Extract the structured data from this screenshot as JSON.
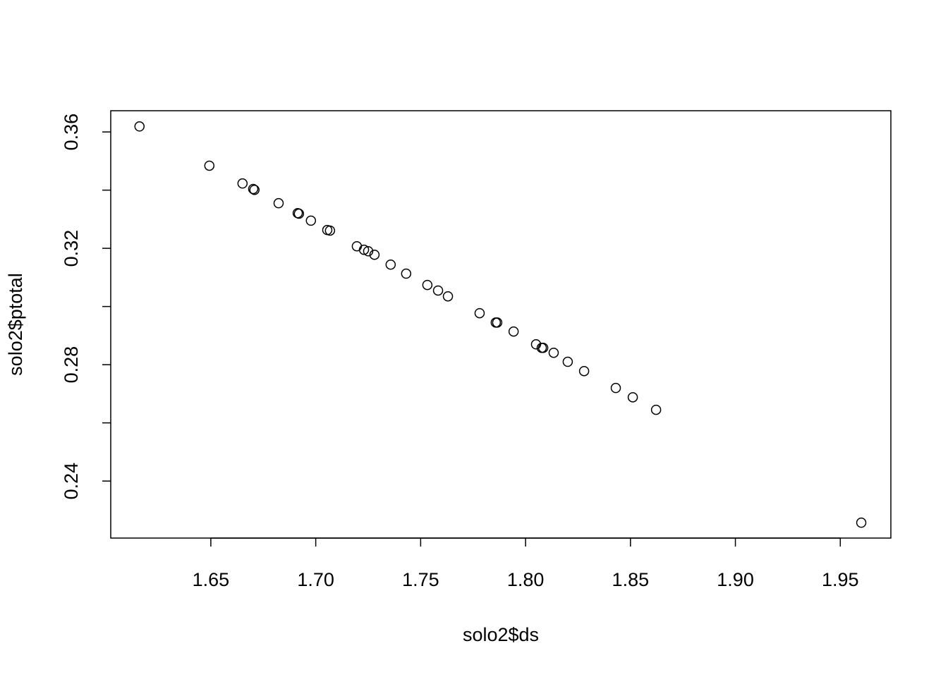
{
  "chart_data": {
    "type": "scatter",
    "x_label": "solo2$ds",
    "y_label": "solo2$ptotal",
    "xlim": [
      1.6023,
      1.9741
    ],
    "ylim": [
      0.2204,
      0.3673
    ],
    "xticks": [
      1.65,
      {
        "value": 1.7,
        "label": "1.70"
      },
      1.75,
      {
        "value": 1.8,
        "label": "1.80"
      },
      1.85,
      {
        "value": 1.9,
        "label": "1.90"
      },
      1.95
    ],
    "yticks": [
      0.24,
      {
        "value": 0.26,
        "label": null
      },
      0.28,
      {
        "value": 0.3,
        "label": null
      },
      0.32,
      {
        "value": 0.34,
        "label": null
      },
      0.36
    ],
    "color": "#000000",
    "x": [
      1.616,
      1.6493,
      1.6651,
      1.6702,
      1.6708,
      1.6823,
      1.6914,
      1.692,
      1.6977,
      1.7055,
      1.7068,
      1.7196,
      1.723,
      1.725,
      1.728,
      1.7357,
      1.7431,
      1.7532,
      1.7583,
      1.763,
      1.7781,
      1.7858,
      1.7865,
      1.7943,
      1.805,
      1.8077,
      1.8084,
      1.8134,
      1.8201,
      1.8279,
      1.843,
      1.8511,
      1.8622,
      1.96
    ],
    "values": [
      0.3619,
      0.3484,
      0.3423,
      0.3404,
      0.3401,
      0.3355,
      0.3321,
      0.3319,
      0.3295,
      0.3263,
      0.3261,
      0.3207,
      0.3195,
      0.319,
      0.3178,
      0.3144,
      0.3113,
      0.3074,
      0.3055,
      0.3035,
      0.2977,
      0.2945,
      0.2945,
      0.2914,
      0.287,
      0.2858,
      0.2858,
      0.2841,
      0.281,
      0.2778,
      0.272,
      0.2688,
      0.2645,
      0.2257
    ]
  }
}
